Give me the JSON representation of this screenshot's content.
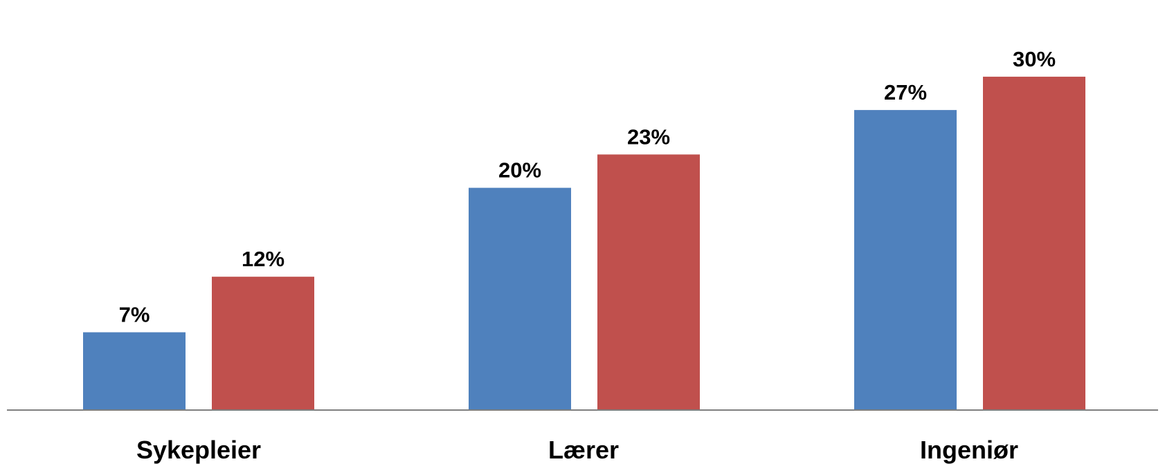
{
  "chart_data": {
    "type": "bar",
    "title": "",
    "xlabel": "",
    "ylabel": "",
    "categories": [
      "Sykepleier",
      "Lærer",
      "Ingeniør"
    ],
    "series": [
      {
        "values": [
          7,
          20,
          27
        ],
        "labels": [
          "7%",
          "20%",
          "27%"
        ],
        "color": "#4F81BD"
      },
      {
        "values": [
          12,
          23,
          30
        ],
        "labels": [
          "12%",
          "23%",
          "30%"
        ],
        "color": "#C0504D"
      }
    ],
    "ylim": [
      0,
      33
    ],
    "grid": false,
    "legend": "none",
    "axis_color": "#7F7F7F"
  }
}
